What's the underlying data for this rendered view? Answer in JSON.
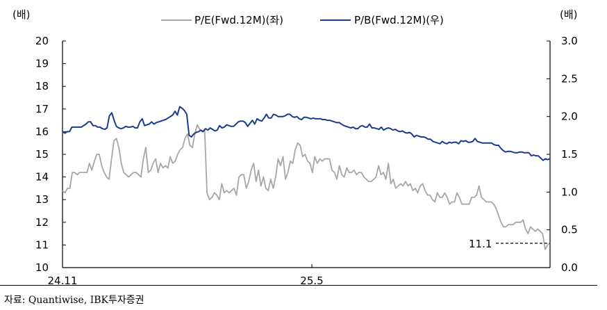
{
  "chart_data": {
    "type": "line",
    "left_axis_unit": "(배)",
    "right_axis_unit": "(배)",
    "y_left": {
      "lim": [
        10,
        20
      ],
      "ticks": [
        "10",
        "11",
        "12",
        "13",
        "14",
        "15",
        "16",
        "17",
        "18",
        "19",
        "20"
      ]
    },
    "y_right": {
      "lim": [
        0.0,
        3.0
      ],
      "ticks": [
        "0.0",
        "0.5",
        "1.0",
        "1.5",
        "2.0",
        "2.5",
        "3.0"
      ]
    },
    "x_ticks": [
      "24.11",
      "25.5"
    ],
    "legend_position": "top",
    "annotation": {
      "text": "11.1"
    },
    "series": [
      {
        "name": "P/E(Fwd.12M)(좌)",
        "axis": "left",
        "color": "#a6a6a6",
        "values": [
          13.4,
          13.3,
          13.5,
          13.5,
          14.2,
          14.2,
          14.1,
          14.2,
          14.2,
          14.2,
          14.2,
          14.6,
          14.3,
          14.7,
          15.0,
          15.0,
          14.5,
          14.2,
          14.0,
          13.9,
          14.8,
          15.6,
          15.7,
          15.3,
          14.6,
          14.2,
          14.1,
          14.0,
          14.1,
          14.2,
          14.2,
          14.1,
          14.0,
          14.8,
          15.3,
          14.2,
          14.3,
          14.6,
          14.8,
          14.2,
          14.6,
          14.4,
          14.5,
          14.4,
          14.9,
          14.6,
          14.7,
          15.0,
          15.2,
          15.3,
          15.7,
          15.9,
          15.4,
          15.3,
          15.9,
          16.3,
          16.1,
          16.0,
          16.1,
          13.3,
          13.0,
          13.1,
          13.3,
          13.2,
          13.0,
          13.7,
          13.3,
          13.4,
          13.3,
          13.4,
          13.5,
          13.2,
          14.0,
          14.1,
          14.1,
          13.5,
          13.8,
          14.3,
          14.6,
          13.8,
          14.3,
          13.6,
          14.0,
          13.5,
          13.4,
          13.9,
          13.5,
          14.0,
          14.8,
          14.5,
          14.9,
          13.9,
          14.2,
          14.7,
          14.6,
          15.2,
          15.5,
          15.4,
          14.9,
          15.0,
          14.7,
          14.6,
          14.2,
          14.9,
          14.6,
          14.8,
          14.7,
          14.8,
          14.8,
          14.8,
          14.3,
          14.2,
          13.9,
          14.5,
          14.1,
          14.0,
          14.4,
          14.2,
          14.2,
          14.3,
          14.1,
          14.2,
          14.2,
          14.0,
          13.9,
          13.8,
          13.8,
          13.9,
          14.0,
          14.5,
          14.1,
          14.2,
          13.9,
          14.6,
          13.7,
          13.9,
          13.5,
          13.6,
          13.7,
          13.6,
          13.8,
          13.6,
          13.7,
          13.4,
          13.5,
          13.3,
          13.6,
          13.7,
          13.4,
          13.2,
          13.2,
          13.0,
          12.9,
          13.3,
          13.1,
          13.1,
          13.3,
          13.1,
          12.8,
          12.9,
          12.9,
          13.3,
          13.1,
          12.8,
          12.8,
          12.8,
          12.8,
          13.1,
          13.1,
          13.2,
          13.6,
          13.1,
          13.0,
          12.9,
          12.9,
          12.9,
          12.8,
          12.6,
          12.3,
          12.0,
          11.8,
          11.8,
          11.9,
          11.9,
          11.9,
          12.0,
          12.0,
          12.0,
          12.1,
          11.7,
          11.5,
          11.8,
          11.7,
          11.6,
          11.7,
          11.6,
          11.5,
          10.8,
          11.0,
          11.1
        ]
      },
      {
        "name": "P/B(Fwd.12M)(우)",
        "axis": "right",
        "color": "#1a3b8c",
        "values": [
          1.8,
          1.78,
          1.8,
          1.8,
          1.86,
          1.86,
          1.86,
          1.86,
          1.86,
          1.88,
          1.9,
          1.93,
          1.93,
          1.88,
          1.88,
          1.86,
          1.86,
          1.84,
          1.83,
          1.85,
          2.01,
          2.05,
          1.95,
          1.87,
          1.85,
          1.84,
          1.85,
          1.87,
          1.86,
          1.86,
          1.87,
          1.85,
          1.85,
          1.93,
          1.97,
          1.88,
          1.89,
          1.9,
          1.93,
          1.9,
          1.92,
          1.93,
          1.94,
          1.95,
          1.96,
          1.98,
          2.0,
          2.02,
          2.07,
          2.02,
          2.13,
          2.11,
          2.08,
          2.03,
          1.75,
          1.73,
          1.77,
          1.79,
          1.8,
          1.82,
          1.8,
          1.84,
          1.82,
          1.85,
          1.83,
          1.81,
          1.82,
          1.88,
          1.85,
          1.86,
          1.89,
          1.88,
          1.87,
          1.87,
          1.9,
          1.93,
          1.94,
          1.94,
          1.92,
          1.87,
          1.91,
          1.95,
          1.9,
          1.97,
          1.95,
          1.94,
          1.98,
          2.03,
          1.98,
          1.98,
          2.03,
          2.02,
          2.0,
          2.0,
          2.0,
          2.01,
          2.03,
          2.03,
          2.0,
          1.99,
          2.0,
          1.97,
          1.96,
          1.99,
          1.99,
          1.98,
          1.97,
          1.98,
          1.97,
          1.97,
          1.97,
          1.96,
          1.96,
          1.95,
          1.95,
          1.94,
          1.93,
          1.92,
          1.92,
          1.9,
          1.88,
          1.87,
          1.86,
          1.85,
          1.86,
          1.84,
          1.84,
          1.87,
          1.88,
          1.86,
          1.86,
          1.9,
          1.85,
          1.85,
          1.84,
          1.83,
          1.86,
          1.82,
          1.84,
          1.85,
          1.84,
          1.82,
          1.83,
          1.81,
          1.8,
          1.81,
          1.79,
          1.78,
          1.79,
          1.77,
          1.73,
          1.75,
          1.74,
          1.73,
          1.73,
          1.72,
          1.7,
          1.7,
          1.67,
          1.66,
          1.65,
          1.64,
          1.67,
          1.65,
          1.64,
          1.66,
          1.65,
          1.66,
          1.66,
          1.64,
          1.68,
          1.67,
          1.68,
          1.66,
          1.66,
          1.67,
          1.71,
          1.67,
          1.66,
          1.65,
          1.65,
          1.65,
          1.65,
          1.65,
          1.63,
          1.62,
          1.62,
          1.58,
          1.55,
          1.53,
          1.54,
          1.54,
          1.53,
          1.52,
          1.52,
          1.53,
          1.53,
          1.52,
          1.52,
          1.52,
          1.48,
          1.49,
          1.48,
          1.48,
          1.45,
          1.42,
          1.44,
          1.43,
          1.44
        ]
      }
    ]
  },
  "source": "자료: Quantiwise, IBK투자증권"
}
